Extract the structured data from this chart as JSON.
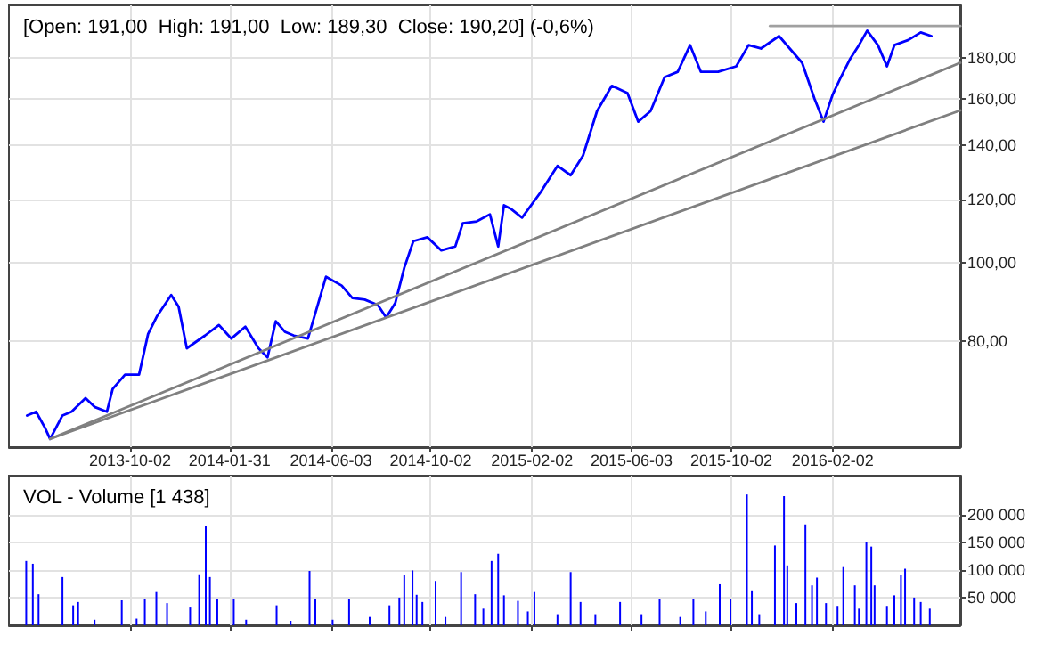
{
  "chart_data": [
    {
      "type": "line",
      "title": "[Open: 191,00  High: 191,00  Low: 189,30  Close: 190,20] (-0,6%)",
      "log": "y",
      "grid": true,
      "xlim": [
        "2013-05-08",
        "2016-07-06"
      ],
      "xticks": [
        "2013-10-02",
        "2014-01-31",
        "2014-06-03",
        "2014-10-02",
        "2015-02-02",
        "2015-06-03",
        "2015-10-02",
        "2016-02-02"
      ],
      "ylim": [
        59,
        209
      ],
      "yticks": [
        {
          "value": 80,
          "label": "80,00"
        },
        {
          "value": 100,
          "label": "100,00"
        },
        {
          "value": 120,
          "label": "120,00"
        },
        {
          "value": 140,
          "label": "140,00"
        },
        {
          "value": 160,
          "label": "160,00"
        },
        {
          "value": 180,
          "label": "180,00"
        }
      ],
      "series": [
        {
          "color": "#0000ff",
          "x": [
            "2013-05-30",
            "2013-06-10",
            "2013-06-21",
            "2013-06-27",
            "2013-07-12",
            "2013-07-23",
            "2013-08-09",
            "2013-08-20",
            "2013-09-04",
            "2013-09-11",
            "2013-09-26",
            "2013-10-13",
            "2013-10-24",
            "2013-11-04",
            "2013-11-21",
            "2013-11-30",
            "2013-12-10",
            "2014-01-01",
            "2014-01-18",
            "2014-02-02",
            "2014-02-19",
            "2014-03-07",
            "2014-03-18",
            "2014-03-28",
            "2014-04-08",
            "2014-04-19",
            "2014-05-06",
            "2014-05-28",
            "2014-06-16",
            "2014-06-29",
            "2014-07-14",
            "2014-07-30",
            "2014-08-09",
            "2014-08-20",
            "2014-08-31",
            "2014-09-11",
            "2014-09-28",
            "2014-10-15",
            "2014-11-01",
            "2014-11-10",
            "2014-11-27",
            "2014-12-13",
            "2014-12-23",
            "2014-12-30",
            "2015-01-08",
            "2015-01-21",
            "2015-02-12",
            "2015-03-05",
            "2015-03-21",
            "2015-04-05",
            "2015-04-22",
            "2015-05-10",
            "2015-05-29",
            "2015-06-11",
            "2015-06-26",
            "2015-07-13",
            "2015-07-29",
            "2015-08-13",
            "2015-08-26",
            "2015-09-16",
            "2015-10-08",
            "2015-10-23",
            "2015-11-07",
            "2015-11-29",
            "2015-12-12",
            "2015-12-27",
            "2016-01-11",
            "2016-01-22",
            "2016-02-02",
            "2016-02-12",
            "2016-02-23",
            "2016-03-05",
            "2016-03-15",
            "2016-03-28",
            "2016-04-08",
            "2016-04-17",
            "2016-05-04",
            "2016-05-19",
            "2016-06-01"
          ],
          "values": [
            64.6,
            65.3,
            62.3,
            60.4,
            64.6,
            65.3,
            67.9,
            66.2,
            65.3,
            69.7,
            72.6,
            72.6,
            81.6,
            85.9,
            91.2,
            88.2,
            78.3,
            81.2,
            83.7,
            80.5,
            83.3,
            78.3,
            76.3,
            84.6,
            82.1,
            81.2,
            80.5,
            96.1,
            93.7,
            90.4,
            90.0,
            88.6,
            85.5,
            89.1,
            98.6,
            106.4,
            107.6,
            103.6,
            104.8,
            112.0,
            112.6,
            114.9,
            104.8,
            117.9,
            116.6,
            113.8,
            122.2,
            132.0,
            128.5,
            135.9,
            154.4,
            166.0,
            162.6,
            149.8,
            154.4,
            170.1,
            172.8,
            186.5,
            172.8,
            172.8,
            175.5,
            186.5,
            184.7,
            191.4,
            184.7,
            177.3,
            160.0,
            149.8,
            161.8,
            170.1,
            179.1,
            186.5,
            194.4,
            186.5,
            175.5,
            186.5,
            189.3,
            193.4,
            191.4
          ]
        },
        {
          "type": "line",
          "color": "#808080",
          "x": [
            "2013-06-27",
            "2016-07-06"
          ],
          "values": [
            60.4,
            177.3
          ]
        },
        {
          "type": "line",
          "color": "#808080",
          "x": [
            "2013-06-27",
            "2016-07-06"
          ],
          "values": [
            60.4,
            154.7
          ]
        },
        {
          "type": "line",
          "color": "#a0a0a0",
          "x": [
            "2015-11-18",
            "2016-07-06"
          ],
          "values": [
            197,
            197
          ]
        }
      ]
    },
    {
      "type": "bar",
      "title": "VOL - Volume [1 438]",
      "grid": true,
      "tick_labels": "y",
      "color": "#0000ff",
      "xlim": [
        "2013-05-08",
        "2016-07-06"
      ],
      "xticks": [
        "2013-10-02",
        "2014-01-31",
        "2014-06-03",
        "2014-10-02",
        "2015-02-02",
        "2015-06-03",
        "2015-10-02",
        "2016-02-02"
      ],
      "ylim": [
        0,
        270000
      ],
      "yticks": [
        {
          "value": 50000,
          "label": "50 000"
        },
        {
          "value": 100000,
          "label": "100 000"
        },
        {
          "value": 150000,
          "label": "150 000"
        },
        {
          "value": 200000,
          "label": "200 000"
        }
      ],
      "x": [
        "2013-05-29",
        "2013-06-06",
        "2013-06-13",
        "2013-07-12",
        "2013-07-25",
        "2013-07-31",
        "2013-08-20",
        "2013-09-22",
        "2013-10-10",
        "2013-10-20",
        "2013-11-03",
        "2013-11-16",
        "2013-12-14",
        "2013-12-25",
        "2014-01-02",
        "2014-01-07",
        "2014-01-16",
        "2014-02-05",
        "2014-02-20",
        "2014-03-29",
        "2014-04-15",
        "2014-05-08",
        "2014-05-15",
        "2014-06-05",
        "2014-06-25",
        "2014-07-20",
        "2014-08-13",
        "2014-08-25",
        "2014-08-31",
        "2014-09-10",
        "2014-09-15",
        "2014-09-22",
        "2014-10-08",
        "2014-10-20",
        "2014-11-08",
        "2014-11-25",
        "2014-12-05",
        "2014-12-15",
        "2014-12-23",
        "2014-12-30",
        "2015-01-16",
        "2015-01-28",
        "2015-02-05",
        "2015-03-05",
        "2015-03-21",
        "2015-04-02",
        "2015-04-20",
        "2015-05-20",
        "2015-06-15",
        "2015-07-07",
        "2015-08-01",
        "2015-08-17",
        "2015-09-01",
        "2015-09-18",
        "2015-10-01",
        "2015-10-21",
        "2015-10-27",
        "2015-11-05",
        "2015-11-24",
        "2015-12-05",
        "2015-12-09",
        "2015-12-20",
        "2015-12-31",
        "2016-01-08",
        "2016-01-14",
        "2016-01-25",
        "2016-02-08",
        "2016-02-15",
        "2016-02-29",
        "2016-03-05",
        "2016-03-14",
        "2016-03-20",
        "2016-03-24",
        "2016-04-08",
        "2016-04-17",
        "2016-04-25",
        "2016-04-30",
        "2016-05-11",
        "2016-05-19",
        "2016-05-30"
      ],
      "values": [
        116000,
        111000,
        56000,
        87000,
        36000,
        42000,
        10000,
        45000,
        12000,
        48000,
        60000,
        40000,
        32000,
        92000,
        180000,
        87000,
        48000,
        48000,
        10000,
        36000,
        8000,
        98000,
        48000,
        10000,
        48000,
        15000,
        36000,
        50000,
        90000,
        99000,
        55000,
        42000,
        80000,
        15000,
        96000,
        56000,
        30000,
        116000,
        129000,
        54000,
        44000,
        25000,
        60000,
        20000,
        96000,
        42000,
        20000,
        42000,
        20000,
        48000,
        15000,
        48000,
        25000,
        74000,
        48000,
        236000,
        63000,
        20000,
        144000,
        233000,
        108000,
        40000,
        182000,
        72000,
        86000,
        40000,
        35000,
        105000,
        72000,
        30000,
        150000,
        142000,
        72000,
        35000,
        54000,
        90000,
        102000,
        50000,
        42000,
        30000
      ]
    }
  ]
}
